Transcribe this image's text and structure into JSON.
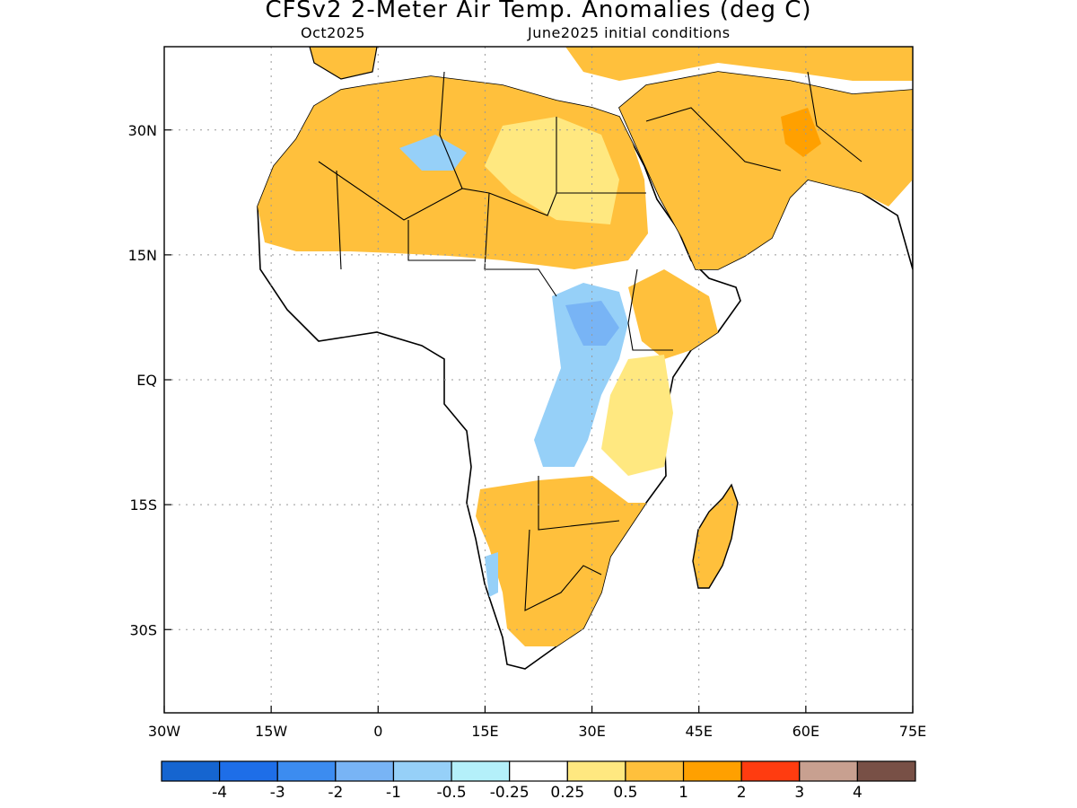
{
  "title": "CFSv2 2-Meter Air Temp. Anomalies (deg C)",
  "valid_month": "Oct2025",
  "init_label": "June2025 initial conditions",
  "map": {
    "lon_range": [
      -30,
      75
    ],
    "lat_range": [
      -40,
      40
    ],
    "lon_ticks": [
      {
        "value": -30,
        "label": "30W"
      },
      {
        "value": -15,
        "label": "15W"
      },
      {
        "value": 0,
        "label": "0"
      },
      {
        "value": 15,
        "label": "15E"
      },
      {
        "value": 30,
        "label": "30E"
      },
      {
        "value": 45,
        "label": "45E"
      },
      {
        "value": 60,
        "label": "60E"
      },
      {
        "value": 75,
        "label": "75E"
      }
    ],
    "lat_ticks": [
      {
        "value": 30,
        "label": "30N"
      },
      {
        "value": 15,
        "label": "15N"
      },
      {
        "value": 0,
        "label": "EQ"
      },
      {
        "value": -15,
        "label": "15S"
      },
      {
        "value": -30,
        "label": "30S"
      }
    ],
    "grid": "dotted"
  },
  "colorbar": {
    "colors": [
      "#1565d0",
      "#1e6ee8",
      "#3c8cf0",
      "#78b4f5",
      "#96d0f8",
      "#b4f0fa",
      "#ffffff",
      "#ffe880",
      "#ffc03c",
      "#ffa000",
      "#ff3c10",
      "#c8a090",
      "#785046"
    ],
    "labels": [
      "-4",
      "-3",
      "-2",
      "-1",
      "-0.5",
      "-0.25",
      "0.25",
      "0.5",
      "1",
      "2",
      "3",
      "4"
    ]
  }
}
